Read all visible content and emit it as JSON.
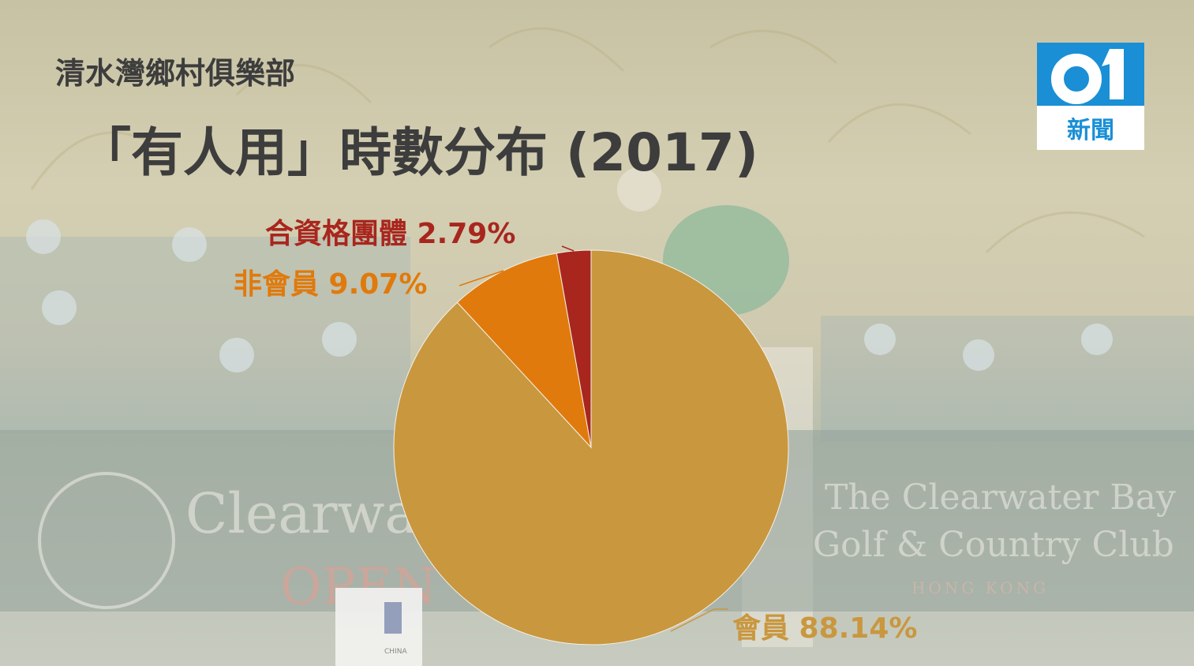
{
  "header": {
    "subtitle": "清水灣鄉村俱樂部",
    "title": "「有人用」時數分布 (2017)"
  },
  "logo": {
    "text": "新聞",
    "icon": "hk01-logo-icon",
    "color": "#1a8fd6"
  },
  "background": {
    "description_icon": "golf-course-photo"
  },
  "chart_data": {
    "type": "pie",
    "series": [
      {
        "name": "會員",
        "value": 88.14,
        "label": "會員 88.14%",
        "color": "#c9973e"
      },
      {
        "name": "非會員",
        "value": 9.07,
        "label": "非會員 9.07%",
        "color": "#e07a0c"
      },
      {
        "name": "合資格團體",
        "value": 2.79,
        "label": "合資格團體 2.79%",
        "color": "#a8261e"
      }
    ],
    "start_angle": "12 o'clock",
    "direction": "counterclockwise-from-top for first slice",
    "legend": "none",
    "data_labels": "outside with leader lines"
  }
}
